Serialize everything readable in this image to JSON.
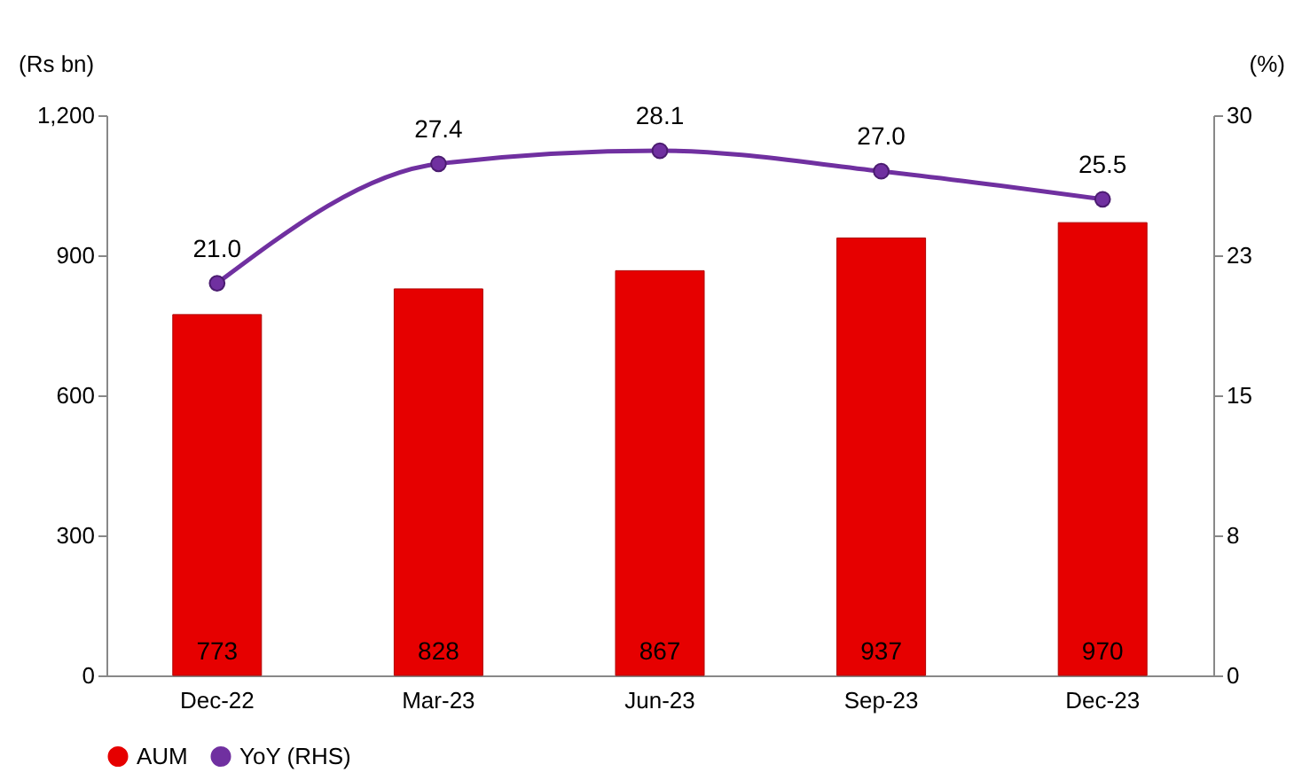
{
  "chart_data": {
    "type": "bar",
    "ylabel": "(Rs bn)",
    "y2label": "(%)",
    "categories": [
      "Dec-22",
      "Mar-23",
      "Jun-23",
      "Sep-23",
      "Dec-23"
    ],
    "series": [
      {
        "name": "AUM",
        "color": "#e60000",
        "values": [
          773,
          828,
          867,
          937,
          970
        ],
        "value_labels": [
          "773",
          "828",
          "867",
          "937",
          "970"
        ]
      },
      {
        "name": "YoY (RHS)",
        "type": "line",
        "axis": "y2",
        "color": "#7030a0",
        "values": [
          21.0,
          27.4,
          28.1,
          27.0,
          25.5
        ],
        "value_labels": [
          "21.0",
          "27.4",
          "28.1",
          "27.0",
          "25.5"
        ],
        "marker": "circle",
        "line_style": "solid"
      }
    ],
    "ylim": [
      0,
      1200
    ],
    "yticks": [
      0,
      300,
      600,
      900,
      {
        "value": 1200,
        "label": "1,200"
      }
    ],
    "y2lim": [
      0,
      30
    ],
    "y2ticks": [
      0,
      {
        "value": 7.5,
        "label": "8"
      },
      15,
      {
        "value": 22.5,
        "label": "23"
      },
      30
    ],
    "grid": false,
    "legend": "bottom"
  }
}
